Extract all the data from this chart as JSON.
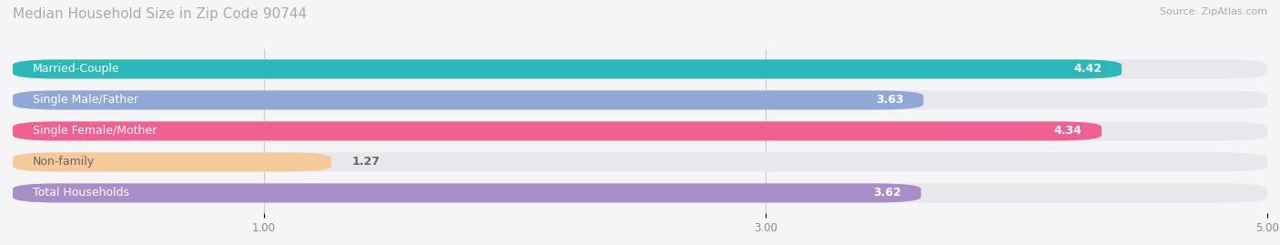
{
  "title": "Median Household Size in Zip Code 90744",
  "source": "Source: ZipAtlas.com",
  "categories": [
    "Married-Couple",
    "Single Male/Father",
    "Single Female/Mother",
    "Non-family",
    "Total Households"
  ],
  "values": [
    4.42,
    3.63,
    4.34,
    1.27,
    3.62
  ],
  "bar_colors": [
    "#2ab8b8",
    "#8fa8d8",
    "#f06090",
    "#f5c99a",
    "#a88ec8"
  ],
  "bar_bg_color": "#e8e8ec",
  "xlim": [
    0,
    5.0
  ],
  "xticks": [
    1.0,
    3.0,
    5.0
  ],
  "xtick_labels": [
    "1.00",
    "3.00",
    "5.00"
  ],
  "label_fontsize": 9,
  "value_fontsize": 9,
  "title_fontsize": 11,
  "bar_height": 0.62,
  "bg_color": "#f5f5f8"
}
